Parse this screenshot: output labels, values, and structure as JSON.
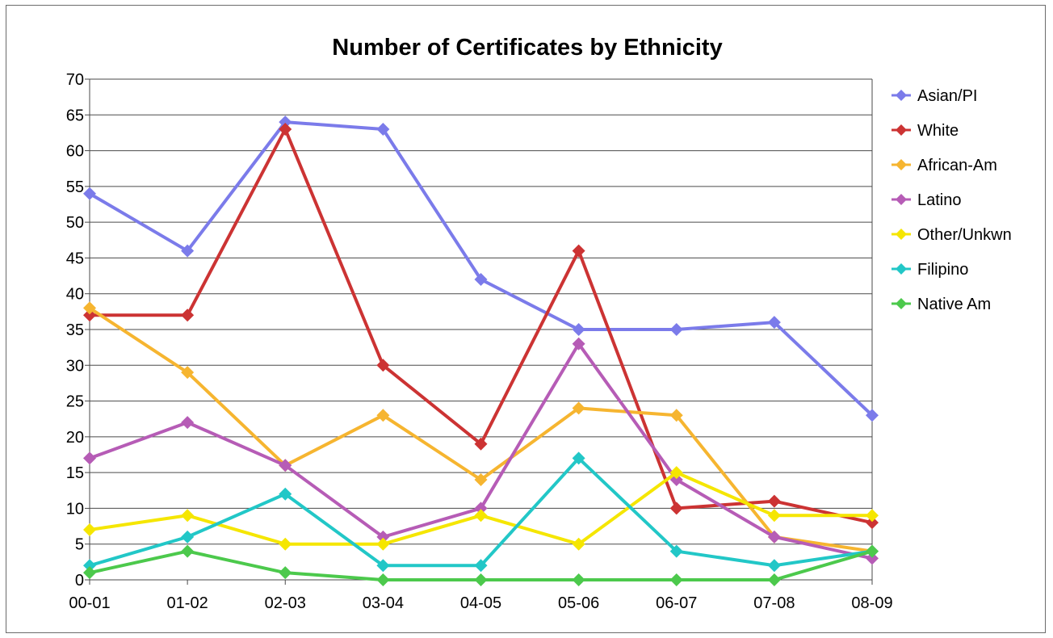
{
  "chart_data": {
    "type": "line",
    "title": "Number of Certificates by Ethnicity",
    "xlabel": "",
    "ylabel": "",
    "categories": [
      "00-01",
      "01-02",
      "02-03",
      "03-04",
      "04-05",
      "05-06",
      "06-07",
      "07-08",
      "08-09"
    ],
    "ylim": [
      0,
      70
    ],
    "yticks": [
      0,
      5,
      10,
      15,
      20,
      25,
      30,
      35,
      40,
      45,
      50,
      55,
      60,
      65,
      70
    ],
    "grid": "horizontal",
    "legend_position": "right",
    "marker": "diamond",
    "series": [
      {
        "name": "Asian/PI",
        "color": "#7b7bea",
        "values": [
          54,
          46,
          64,
          63,
          42,
          35,
          35,
          36,
          23
        ]
      },
      {
        "name": "White",
        "color": "#cc3333",
        "values": [
          37,
          37,
          63,
          30,
          19,
          46,
          10,
          11,
          8
        ]
      },
      {
        "name": "African-Am",
        "color": "#f6b530",
        "values": [
          38,
          29,
          16,
          23,
          14,
          24,
          23,
          6,
          4
        ]
      },
      {
        "name": "Latino",
        "color": "#b65cb6",
        "values": [
          17,
          22,
          16,
          6,
          10,
          33,
          14,
          6,
          3
        ]
      },
      {
        "name": "Other/Unkwn",
        "color": "#f5e600",
        "values": [
          7,
          9,
          5,
          5,
          9,
          5,
          15,
          9,
          9
        ]
      },
      {
        "name": "Filipino",
        "color": "#22c7c7",
        "values": [
          2,
          6,
          12,
          2,
          2,
          17,
          4,
          2,
          4
        ]
      },
      {
        "name": "Native Am",
        "color": "#4cc94c",
        "values": [
          1,
          4,
          1,
          0,
          0,
          0,
          0,
          0,
          4
        ]
      }
    ]
  }
}
